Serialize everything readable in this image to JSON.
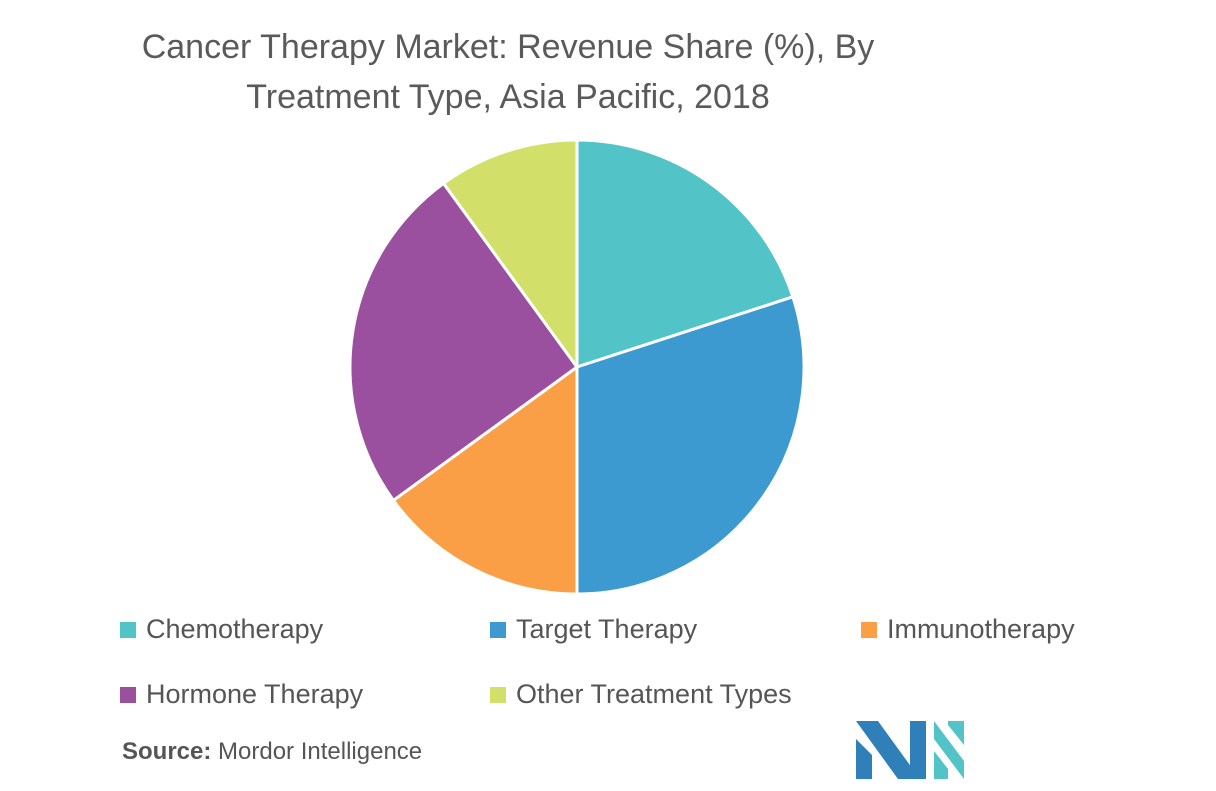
{
  "title": {
    "line1": "Cancer Therapy Market: Revenue Share (%), By",
    "line2": "Treatment Type, Asia Pacific, 2018"
  },
  "chart_data": {
    "type": "pie",
    "title": "Cancer Therapy Market: Revenue Share (%), By Treatment Type, Asia Pacific, 2018",
    "slices": [
      {
        "label": "Chemotherapy",
        "value": 20,
        "color": "#52c4c8"
      },
      {
        "label": "Target Therapy",
        "value": 30,
        "color": "#3d9ad0"
      },
      {
        "label": "Immunotherapy",
        "value": 15,
        "color": "#fb9f47"
      },
      {
        "label": "Hormone Therapy",
        "value": 25,
        "color": "#9a509e"
      },
      {
        "label": "Other Treatment Types",
        "value": 10,
        "color": "#d2e06a"
      }
    ],
    "legend_position": "bottom"
  },
  "source": {
    "label": "Source:",
    "text": "Mordor Intelligence"
  },
  "logo": {
    "name": "mordor-intelligence-logo",
    "colors": [
      "#2f7fb8",
      "#52c4c8"
    ]
  }
}
